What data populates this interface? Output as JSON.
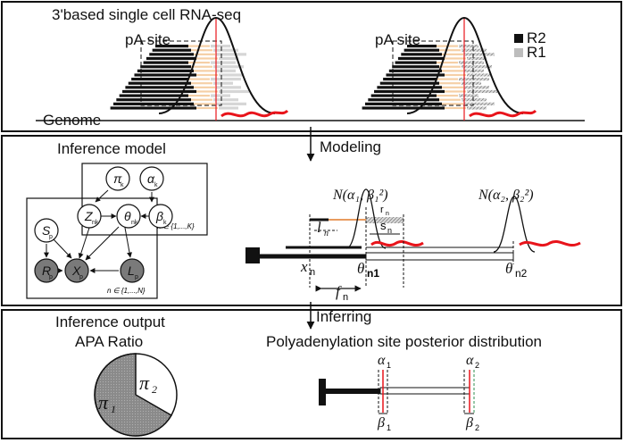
{
  "panels": {
    "top": {
      "title": "3'based single cell RNA-seq",
      "pa_site_left": "pA site",
      "pa_site_right": "pA site",
      "genome_label": "Genome",
      "legend": [
        {
          "label": "R2",
          "color": "#111111"
        },
        {
          "label": "R1",
          "color": "#bdbdbd"
        }
      ]
    },
    "middle": {
      "title": "Inference model",
      "arrow_label": "Modeling",
      "nodes": {
        "pi": {
          "base": "π",
          "sub": "k"
        },
        "alpha": {
          "base": "α",
          "sub": "k"
        },
        "z": {
          "base": "Z",
          "sub": "nk"
        },
        "theta": {
          "base": "θ",
          "sub": "nk"
        },
        "beta": {
          "base": "β",
          "sub": "k"
        },
        "s": {
          "base": "S",
          "sub": "p"
        },
        "r": {
          "base": "R",
          "sub": "p"
        },
        "x": {
          "base": "X",
          "sub": "p"
        },
        "l": {
          "base": "L",
          "sub": "p"
        }
      },
      "plate_k": "k ∈ {1,...,K}",
      "plate_n": "n ∈ {1,...,N}",
      "dist1": "N(α₁, β₁²)",
      "dist2": "N(α₂, β₂²)",
      "rn": "r",
      "rn_sub": "n",
      "ln": "l",
      "ln_sub": "n",
      "sn": "s",
      "sn_sub": "n",
      "xn": "x",
      "xn_sub": "n",
      "theta1": "θ",
      "theta1_sub": "n1",
      "theta2": "θ",
      "theta2_sub": "n2",
      "fn": "f",
      "fn_sub": "n"
    },
    "bottom": {
      "title": "Inference output",
      "arrow_label": "Inferring",
      "ratio_title": "APA Ratio",
      "posterior_title": "Polyadenylation site posterior distribution",
      "pie_labels": {
        "pi1": "π",
        "pi1_sub": "1",
        "pi2": "π",
        "pi2_sub": "2"
      },
      "alpha1": "α",
      "alpha1_sub": "1",
      "alpha2": "α",
      "alpha2_sub": "2",
      "beta1": "β",
      "beta1_sub": "1",
      "beta2": "β",
      "beta2_sub": "2"
    }
  },
  "colors": {
    "red": "#e8141b",
    "peach": "#f5cfa6",
    "orange": "#e07a2a",
    "green": "#2f8f4f",
    "grey_node": "#7a7a7a",
    "pie_grey": "#888888"
  }
}
